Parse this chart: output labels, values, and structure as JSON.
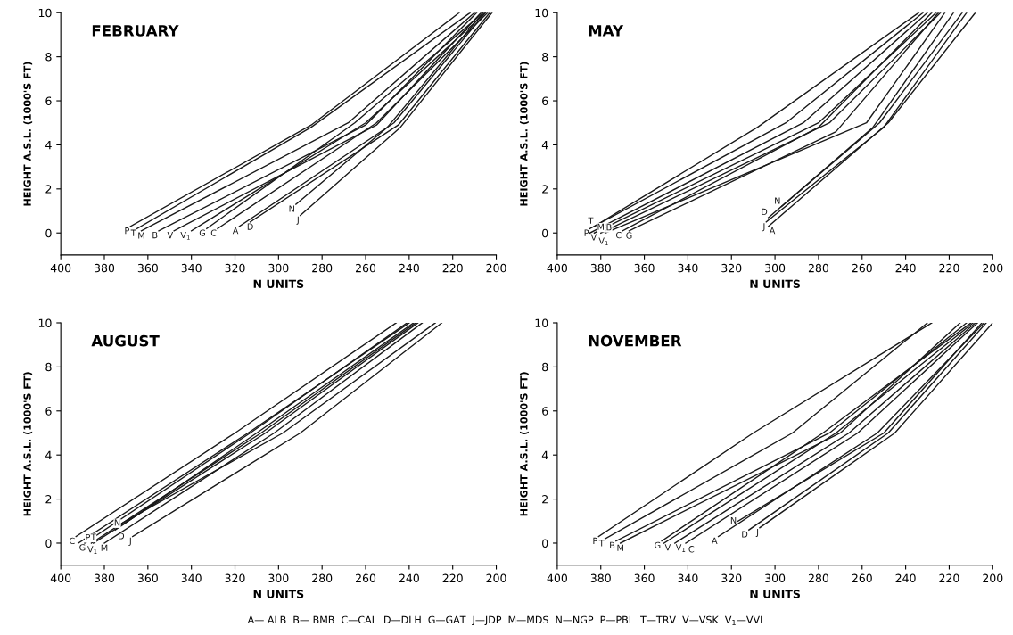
{
  "chart_data": [
    {
      "type": "line",
      "title": "FEBRUARY",
      "xlabel": "N UNITS",
      "ylabel": "HEIGHT A.S.L. (1000'S FT)",
      "xlim": [
        400,
        200
      ],
      "ylim": [
        -1,
        10
      ],
      "xticks": [
        400,
        380,
        360,
        340,
        320,
        300,
        280,
        260,
        240,
        220,
        200
      ],
      "yticks": [
        0,
        2,
        4,
        6,
        8,
        10
      ],
      "grid": false,
      "legend": false,
      "marker": "none",
      "line_style": "solid",
      "series": [
        {
          "name": "P",
          "color": "#1a1a1a",
          "x": [
            368,
            285,
            217
          ],
          "values": [
            0.3,
            4.9,
            10
          ]
        },
        {
          "name": "T",
          "color": "#1a1a1a",
          "x": [
            365,
            285,
            212
          ],
          "values": [
            0.2,
            4.8,
            10
          ]
        },
        {
          "name": "M",
          "color": "#1a1a1a",
          "x": [
            363,
            268,
            210
          ],
          "values": [
            0.1,
            5,
            10
          ]
        },
        {
          "name": "B",
          "color": "#1a1a1a",
          "x": [
            355,
            260,
            209
          ],
          "values": [
            0.1,
            4.9,
            10
          ]
        },
        {
          "name": "V",
          "color": "#1a1a1a",
          "x": [
            348,
            255,
            207
          ],
          "values": [
            0.1,
            4.9,
            10
          ]
        },
        {
          "name": "V$_{1}$",
          "color": "#1a1a1a",
          "x": [
            340,
            260,
            205
          ],
          "values": [
            0.1,
            5,
            10
          ]
        },
        {
          "name": "G",
          "color": "#1a1a1a",
          "x": [
            333,
            265,
            206
          ],
          "values": [
            0.2,
            5,
            10
          ]
        },
        {
          "name": "C",
          "color": "#1a1a1a",
          "x": [
            328,
            255,
            204
          ],
          "values": [
            0.2,
            5,
            10
          ]
        },
        {
          "name": "A",
          "color": "#1a1a1a",
          "x": [
            318,
            247,
            205
          ],
          "values": [
            0.3,
            5,
            10
          ]
        },
        {
          "name": "D",
          "color": "#1a1a1a",
          "x": [
            313,
            245,
            203
          ],
          "values": [
            0.5,
            4.9,
            10
          ]
        },
        {
          "name": "N",
          "color": "#1a1a1a",
          "x": [
            292,
            250,
            206
          ],
          "values": [
            1.3,
            4.8,
            10
          ]
        },
        {
          "name": "J",
          "color": "#1a1a1a",
          "x": [
            290,
            244,
            202
          ],
          "values": [
            0.8,
            4.8,
            10
          ]
        }
      ]
    },
    {
      "type": "line",
      "title": "MAY",
      "xlabel": "N UNITS",
      "ylabel": "HEIGHT A.S.L. (1000'S FT)",
      "xlim": [
        400,
        200
      ],
      "ylim": [
        -1,
        10
      ],
      "xticks": [
        400,
        380,
        360,
        340,
        320,
        300,
        280,
        260,
        240,
        220,
        200
      ],
      "yticks": [
        0,
        2,
        4,
        6,
        8,
        10
      ],
      "grid": false,
      "legend": false,
      "marker": "none",
      "line_style": "solid",
      "series": [
        {
          "name": "T",
          "color": "#1a1a1a",
          "x": [
            383,
            308,
            234
          ],
          "values": [
            0.3,
            4.8,
            10
          ]
        },
        {
          "name": "P",
          "color": "#1a1a1a",
          "x": [
            385,
            295,
            232
          ],
          "values": [
            0.2,
            5,
            10
          ]
        },
        {
          "name": "V",
          "color": "#1a1a1a",
          "x": [
            385,
            287,
            230
          ],
          "values": [
            0,
            5,
            10
          ]
        },
        {
          "name": "V$_{1}$",
          "color": "#1a1a1a",
          "x": [
            383,
            280,
            226
          ],
          "values": [
            0,
            5,
            10
          ]
        },
        {
          "name": "M",
          "color": "#1a1a1a",
          "x": [
            380,
            275,
            224
          ],
          "values": [
            0,
            5,
            10
          ]
        },
        {
          "name": "B",
          "color": "#1a1a1a",
          "x": [
            378,
            258,
            222
          ],
          "values": [
            0,
            5,
            10
          ]
        },
        {
          "name": "C",
          "color": "#1a1a1a",
          "x": [
            370,
            280,
            228
          ],
          "values": [
            0.1,
            4.8,
            10
          ]
        },
        {
          "name": "G",
          "color": "#1a1a1a",
          "x": [
            367,
            272,
            225
          ],
          "values": [
            0.1,
            4.6,
            10
          ]
        },
        {
          "name": "D",
          "color": "#1a1a1a",
          "x": [
            303,
            255,
            218
          ],
          "values": [
            0.7,
            4.8,
            10
          ]
        },
        {
          "name": "N",
          "color": "#1a1a1a",
          "x": [
            297,
            252,
            214
          ],
          "values": [
            1.2,
            5,
            10
          ]
        },
        {
          "name": "J",
          "color": "#1a1a1a",
          "x": [
            304,
            250,
            212
          ],
          "values": [
            0.5,
            4.8,
            10
          ]
        },
        {
          "name": "A",
          "color": "#1a1a1a",
          "x": [
            303,
            248,
            208
          ],
          "values": [
            0.3,
            5,
            10
          ]
        }
      ]
    },
    {
      "type": "line",
      "title": "AUGUST",
      "xlabel": "N UNITS",
      "ylabel": "HEIGHT A.S.L. (1000'S FT)",
      "xlim": [
        400,
        200
      ],
      "ylim": [
        -1,
        10
      ],
      "xticks": [
        400,
        380,
        360,
        340,
        320,
        300,
        280,
        260,
        240,
        220,
        200
      ],
      "yticks": [
        0,
        2,
        4,
        6,
        8,
        10
      ],
      "grid": false,
      "legend": false,
      "marker": "none",
      "line_style": "solid",
      "series": [
        {
          "name": "C",
          "color": "#1a1a1a",
          "x": [
            393,
            320,
            246
          ],
          "values": [
            0.3,
            5,
            10
          ]
        },
        {
          "name": "G",
          "color": "#1a1a1a",
          "x": [
            392,
            314,
            240
          ],
          "values": [
            0,
            5,
            10
          ]
        },
        {
          "name": "V$_{1}$",
          "color": "#1a1a1a",
          "x": [
            389,
            313,
            241
          ],
          "values": [
            0,
            5,
            10
          ]
        },
        {
          "name": "D",
          "color": "#1a1a1a",
          "x": [
            375,
            310,
            238
          ],
          "values": [
            0.6,
            5,
            10
          ]
        },
        {
          "name": "P",
          "color": "#1a1a1a",
          "x": [
            386,
            308,
            237
          ],
          "values": [
            0,
            5,
            10
          ]
        },
        {
          "name": "T",
          "color": "#1a1a1a",
          "x": [
            385,
            306,
            236
          ],
          "values": [
            0,
            5,
            10
          ]
        },
        {
          "name": "M",
          "color": "#1a1a1a",
          "x": [
            380,
            302,
            234
          ],
          "values": [
            0,
            5,
            10
          ]
        },
        {
          "name": "N",
          "color": "#1a1a1a",
          "x": [
            372,
            298,
            228
          ],
          "values": [
            0.9,
            5,
            10
          ]
        },
        {
          "name": "J",
          "color": "#1a1a1a",
          "x": [
            367,
            290,
            225
          ],
          "values": [
            0.3,
            5,
            10
          ]
        }
      ]
    },
    {
      "type": "line",
      "title": "NOVEMBER",
      "xlabel": "N UNITS",
      "ylabel": "HEIGHT A.S.L. (1000'S FT)",
      "xlim": [
        400,
        200
      ],
      "ylim": [
        -1,
        10
      ],
      "xticks": [
        400,
        380,
        360,
        340,
        320,
        300,
        280,
        260,
        240,
        220,
        200
      ],
      "yticks": [
        0,
        2,
        4,
        6,
        8,
        10
      ],
      "grid": false,
      "legend": false,
      "marker": "none",
      "line_style": "solid",
      "annotations": [
        "A— ALB  B— BMB  C—CAL  D—DLH  G—GAT  J—JDP  M—MDS  N—NGP  P—PBL  T—TRV  V—VSK  V$_{1}$—VVL"
      ],
      "series": [
        {
          "name": "P",
          "color": "#1a1a1a",
          "x": [
            381,
            310,
            228
          ],
          "values": [
            0.3,
            5,
            10
          ]
        },
        {
          "name": "T",
          "color": "#1a1a1a",
          "x": [
            378,
            292,
            230
          ],
          "values": [
            0.2,
            5,
            10
          ]
        },
        {
          "name": "B",
          "color": "#1a1a1a",
          "x": [
            373,
            275,
            212
          ],
          "values": [
            0.1,
            5,
            10
          ]
        },
        {
          "name": "M",
          "color": "#1a1a1a",
          "x": [
            371,
            270,
            215
          ],
          "values": [
            0,
            5,
            10
          ]
        },
        {
          "name": "G",
          "color": "#1a1a1a",
          "x": [
            352,
            278,
            210
          ],
          "values": [
            0.1,
            5,
            10
          ]
        },
        {
          "name": "V",
          "color": "#1a1a1a",
          "x": [
            351,
            272,
            209
          ],
          "values": [
            0,
            5,
            10
          ]
        },
        {
          "name": "V$_{1}$",
          "color": "#1a1a1a",
          "x": [
            346,
            266,
            208
          ],
          "values": [
            0,
            5,
            10
          ]
        },
        {
          "name": "C",
          "color": "#1a1a1a",
          "x": [
            341,
            262,
            207
          ],
          "values": [
            0,
            5,
            10
          ]
        },
        {
          "name": "A",
          "color": "#1a1a1a",
          "x": [
            326,
            253,
            204
          ],
          "values": [
            0.3,
            5,
            10
          ]
        },
        {
          "name": "N",
          "color": "#1a1a1a",
          "x": [
            317,
            250,
            205
          ],
          "values": [
            1,
            5,
            10
          ]
        },
        {
          "name": "D",
          "color": "#1a1a1a",
          "x": [
            312,
            248,
            203
          ],
          "values": [
            0.6,
            5,
            10
          ]
        },
        {
          "name": "J",
          "color": "#1a1a1a",
          "x": [
            307,
            245,
            200
          ],
          "values": [
            0.7,
            5,
            10
          ]
        }
      ]
    }
  ]
}
